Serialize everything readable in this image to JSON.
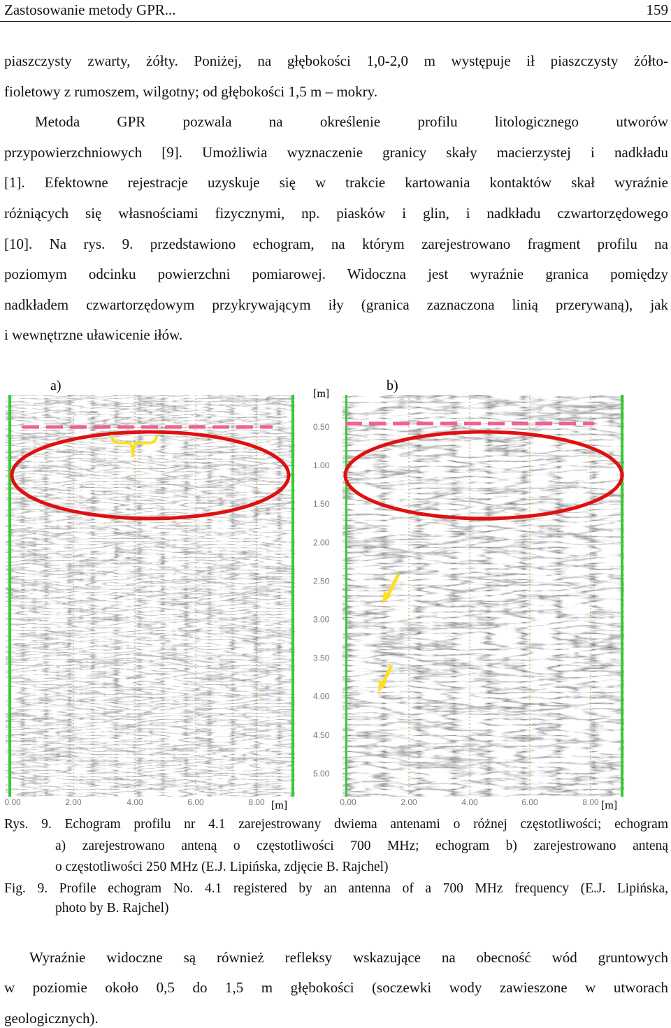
{
  "header": {
    "title": "Zastosowanie metody GPR...",
    "page": "159"
  },
  "paragraphs": [
    {
      "lines": [
        "piaszczysty zwarty, żółty. Poniżej, na głębokości 1,0-2,0 m występuje ił piaszczysty żółto-",
        "fioletowy z rumoszem, wilgotny; od głębokości 1,5 m – mokry."
      ]
    },
    {
      "lines": [
        "Metoda GPR pozwala na określenie profilu litologicznego utworów",
        "przypowierzchniowych [9]. Umożliwia wyznaczenie granicy skały macierzystej i nadkładu",
        "[1]. Efektowne rejestracje uzyskuje się w trakcie kartowania kontaktów skał wyraźnie",
        "różniących się własnościami fizycznymi, np. piasków i glin, i nadkładu czwartorzędowego",
        "[10]. Na rys. 9. przedstawiono echogram, na którym zarejestrowano fragment profilu na",
        "poziomym odcinku powierzchni pomiarowej. Widoczna jest wyraźnie granica pomiędzy",
        "nadkładem czwartorzędowym przykrywającym iły (granica zaznaczona linią przerywaną), jak",
        "i wewnętrzne uławicenie iłów."
      ]
    }
  ],
  "figure": {
    "panel_a_label": "a)",
    "panel_b_label": "b)",
    "depth_unit": "[m]",
    "depth_ticks": [
      "0.50",
      "1.00",
      "1.50",
      "2.00",
      "2.50",
      "3.00",
      "3.50",
      "4.00",
      "4.50",
      "5.00"
    ],
    "panel_a_x_ticks": [
      "0.00",
      "2.00",
      "4.00",
      "6.00",
      "8.00"
    ],
    "panel_a_x_unit": "[m]",
    "panel_b_x_ticks": [
      "0.00",
      "2.00",
      "4.00",
      "6.00",
      "8.00"
    ],
    "panel_b_x_unit": "[m]"
  },
  "caption": {
    "pl_lines": [
      "Rys. 9. Echogram profilu nr 4.1  zarejestrowany dwiema antenami o różnej częstotliwości; echogram",
      "a) zarejestrowano anteną o częstotliwości 700 MHz; echogram b) zarejestrowano anteną",
      "o częstotliwości 250 MHz (E.J. Lipińska, zdjęcie B. Rajchel)"
    ],
    "en_lines": [
      "Fig. 9. Profile echogram No. 4.1  registered by an antenna of a 700 MHz frequency (E.J. Lipińska,",
      "photo by B. Rajchel)"
    ]
  },
  "closing": {
    "lines": [
      "Wyraźnie widoczne są również refleksy wskazujące na obecność wód gruntowych",
      "w poziomie około 0,5 do 1,5 m głębokości (soczewki wody zawieszone w utworach",
      "geologicznych)."
    ]
  }
}
